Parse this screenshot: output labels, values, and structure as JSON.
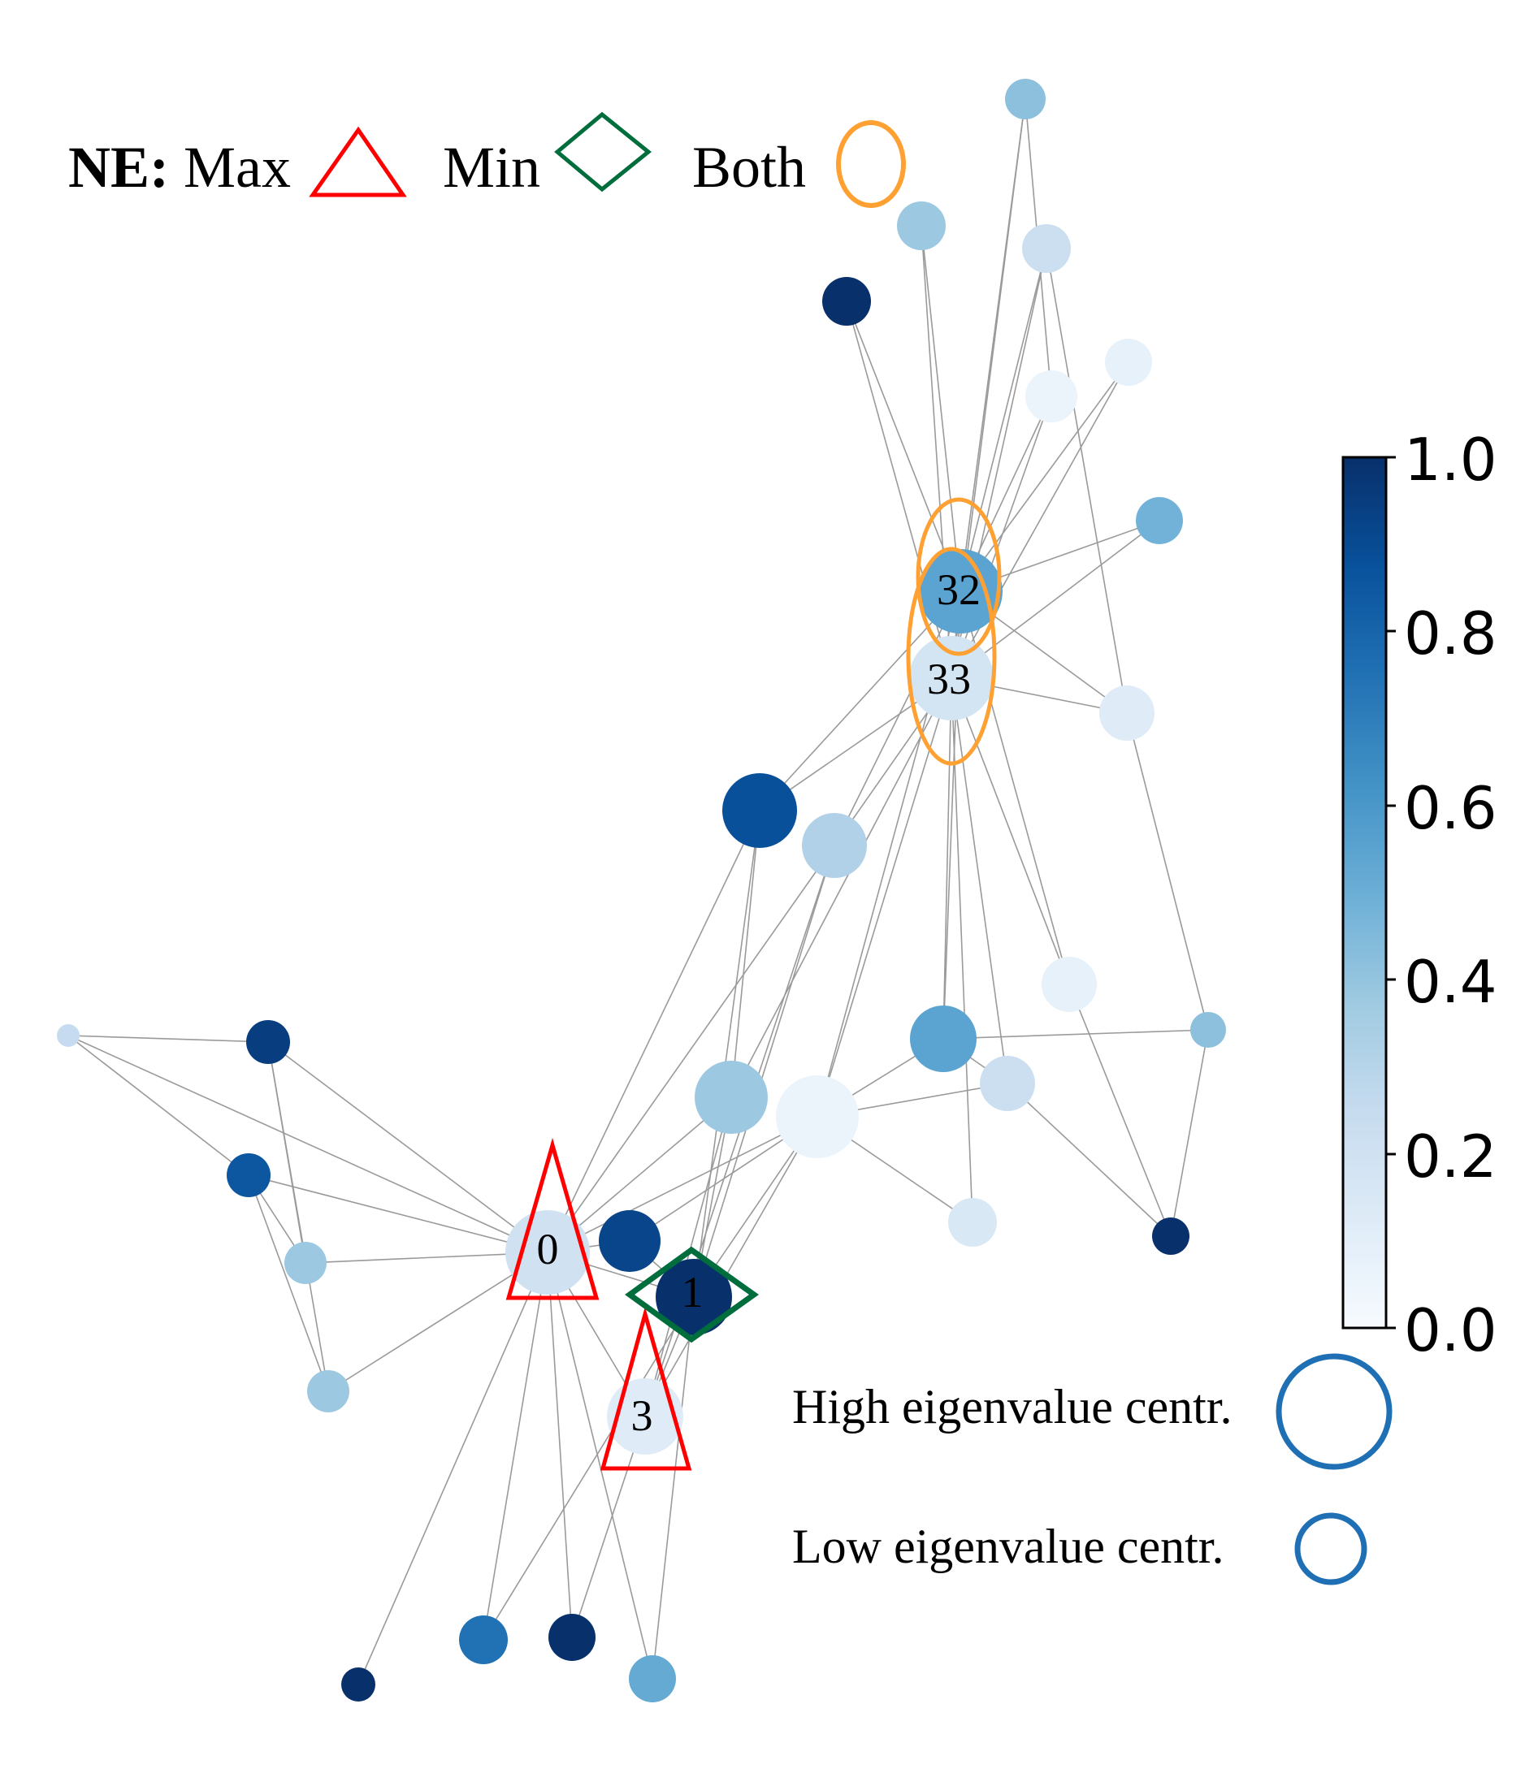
{
  "legend": {
    "prefix": "NE:",
    "max_label": "Max",
    "min_label": "Min",
    "both_label": "Both",
    "max_color": "#ff0000",
    "min_color": "#006d3c",
    "both_color": "#ffa033"
  },
  "size_legend": {
    "high_label": "High eigenvalue centr.",
    "low_label": "Low eigenvalue centr.",
    "ring_color": "#1f6fb5"
  },
  "colorbar": {
    "colormap": "Blues",
    "ticks": [
      "0.0",
      "0.2",
      "0.4",
      "0.6",
      "0.8",
      "1.0"
    ],
    "min": 0.0,
    "max": 1.0
  },
  "graph": {
    "node_labels": {
      "n0": "0",
      "n1": "1",
      "n3": "3",
      "n32": "32",
      "n33": "33"
    },
    "nodes": [
      {
        "id": "n0",
        "value": 0.2,
        "centrality": "high",
        "marker": "max"
      },
      {
        "id": "n1",
        "value": 1.0,
        "centrality": "mid",
        "marker": "min"
      },
      {
        "id": "n3",
        "value": 0.12,
        "centrality": "mid",
        "marker": "max"
      },
      {
        "id": "n32",
        "value": 0.55,
        "centrality": "high",
        "marker": "both"
      },
      {
        "id": "n33",
        "value": 0.18,
        "centrality": "high",
        "marker": "both"
      },
      {
        "id": "a",
        "value": 0.92,
        "centrality": "mid",
        "marker": ""
      },
      {
        "id": "b",
        "value": 0.38,
        "centrality": "high",
        "marker": ""
      },
      {
        "id": "c",
        "value": 0.06,
        "centrality": "high",
        "marker": ""
      },
      {
        "id": "d",
        "value": 0.25,
        "centrality": "low",
        "marker": ""
      },
      {
        "id": "e",
        "value": 0.88,
        "centrality": "high",
        "marker": ""
      },
      {
        "id": "f",
        "value": 0.32,
        "centrality": "mid",
        "marker": ""
      },
      {
        "id": "g",
        "value": 0.55,
        "centrality": "mid",
        "marker": ""
      },
      {
        "id": "h",
        "value": 0.22,
        "centrality": "low",
        "marker": ""
      },
      {
        "id": "i",
        "value": 0.08,
        "centrality": "low",
        "marker": ""
      },
      {
        "id": "j",
        "value": 0.42,
        "centrality": "low",
        "marker": ""
      },
      {
        "id": "k",
        "value": 1.0,
        "centrality": "min",
        "marker": ""
      },
      {
        "id": "l",
        "value": 0.15,
        "centrality": "low",
        "marker": ""
      },
      {
        "id": "m",
        "value": 0.12,
        "centrality": "low",
        "marker": ""
      },
      {
        "id": "n",
        "value": 0.06,
        "centrality": "low",
        "marker": ""
      },
      {
        "id": "o",
        "value": 0.08,
        "centrality": "low",
        "marker": ""
      },
      {
        "id": "p",
        "value": 0.22,
        "centrality": "low",
        "marker": ""
      },
      {
        "id": "q",
        "value": 0.42,
        "centrality": "low",
        "marker": ""
      },
      {
        "id": "r",
        "value": 0.38,
        "centrality": "low",
        "marker": ""
      },
      {
        "id": "s",
        "value": 1.0,
        "centrality": "low",
        "marker": ""
      },
      {
        "id": "t",
        "value": 0.48,
        "centrality": "min",
        "marker": ""
      },
      {
        "id": "u",
        "value": 0.95,
        "centrality": "low",
        "marker": ""
      },
      {
        "id": "v",
        "value": 0.85,
        "centrality": "low",
        "marker": ""
      },
      {
        "id": "w",
        "value": 0.38,
        "centrality": "low",
        "marker": ""
      },
      {
        "id": "x",
        "value": 0.38,
        "centrality": "low",
        "marker": ""
      },
      {
        "id": "y",
        "value": 0.75,
        "centrality": "low",
        "marker": ""
      },
      {
        "id": "z",
        "value": 1.0,
        "centrality": "low",
        "marker": ""
      },
      {
        "id": "aa",
        "value": 0.75,
        "centrality": "low",
        "marker": ""
      },
      {
        "id": "bb",
        "value": 1.0,
        "centrality": "min",
        "marker": ""
      },
      {
        "id": "cc",
        "value": 0.52,
        "centrality": "low",
        "marker": ""
      }
    ]
  }
}
